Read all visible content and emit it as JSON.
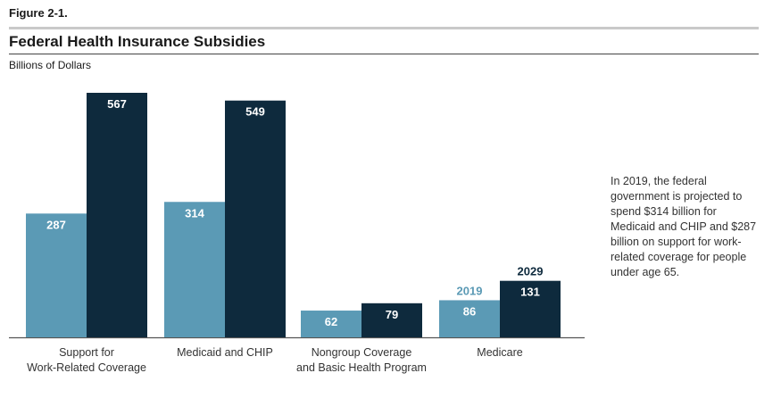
{
  "figure_label": "Figure 2-1.",
  "title": "Federal Health Insurance Subsidies",
  "units": "Billions of Dollars",
  "note": "In 2019, the federal government is projected to spend $314 billion for Medicaid and CHIP and $287 billion on support for work-related coverage for people under age 65.",
  "colors": {
    "series_2019": "#5b9ab5",
    "series_2029": "#0e2a3d",
    "axis": "#555555"
  },
  "chart_data": {
    "type": "bar",
    "categories": [
      [
        "Support for",
        "Work-Related Coverage"
      ],
      [
        "Medicaid and CHIP"
      ],
      [
        "Nongroup Coverage",
        "and Basic Health Program"
      ],
      [
        "Medicare"
      ]
    ],
    "series": [
      {
        "name": "2019",
        "values": [
          287,
          314,
          62,
          86
        ]
      },
      {
        "name": "2029",
        "values": [
          567,
          549,
          79,
          131
        ]
      }
    ],
    "legend_placement": "inline above last category",
    "ylim": [
      0,
      567
    ],
    "grid": false
  }
}
